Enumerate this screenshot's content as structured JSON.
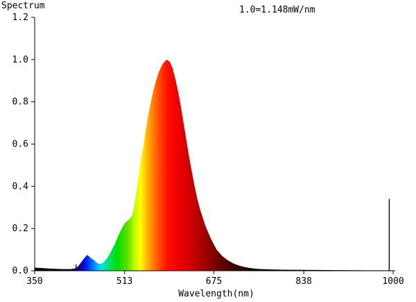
{
  "chart_data": {
    "type": "area",
    "title": "Spectrum",
    "annotation": "1.0=1.148mW/nm",
    "xlabel": "Wavelength(nm)",
    "ylabel": "",
    "xlim": [
      350,
      1000
    ],
    "ylim": [
      0,
      1.2
    ],
    "x_ticks": [
      350,
      513,
      675,
      838,
      1000
    ],
    "y_ticks": [
      0.0,
      0.2,
      0.4,
      0.6,
      0.8,
      1.0,
      1.2
    ],
    "x_tick_labels": [
      "350",
      "513",
      "675",
      "838",
      "1000"
    ],
    "y_tick_labels": [
      "0.0",
      "0.2",
      "0.4",
      "0.6",
      "0.8",
      "1.0",
      "1.2"
    ],
    "fill": "wavelength-color-gradient",
    "series": [
      {
        "x": [
          350,
          380,
          400,
          415,
          425,
          430,
          440,
          445,
          448,
          452,
          458,
          462,
          466,
          470,
          475,
          480,
          485,
          490,
          495,
          500,
          505,
          510,
          515,
          520,
          525,
          528,
          530,
          535,
          540,
          545,
          548,
          550,
          555,
          560,
          565,
          570,
          575,
          580,
          585,
          590,
          595,
          600,
          605,
          610,
          615,
          620,
          625,
          630,
          635,
          640,
          645,
          650,
          660,
          670,
          680,
          690,
          700,
          710,
          720,
          730,
          740,
          750,
          760,
          780,
          800,
          840,
          900,
          950,
          1000
        ],
        "y": [
          0.015,
          0.01,
          0.008,
          0.008,
          0.012,
          0.025,
          0.06,
          0.075,
          0.07,
          0.06,
          0.05,
          0.04,
          0.033,
          0.033,
          0.04,
          0.055,
          0.075,
          0.1,
          0.125,
          0.155,
          0.185,
          0.21,
          0.23,
          0.24,
          0.255,
          0.27,
          0.3,
          0.38,
          0.48,
          0.56,
          0.6,
          0.64,
          0.72,
          0.79,
          0.85,
          0.9,
          0.94,
          0.97,
          0.99,
          1.0,
          0.99,
          0.96,
          0.91,
          0.85,
          0.78,
          0.7,
          0.62,
          0.54,
          0.47,
          0.4,
          0.34,
          0.29,
          0.21,
          0.15,
          0.1,
          0.07,
          0.05,
          0.035,
          0.025,
          0.018,
          0.013,
          0.01,
          0.008,
          0.006,
          0.005,
          0.004,
          0.003,
          0.002,
          0.002
        ]
      }
    ],
    "spikes": [
      {
        "x": 425,
        "y": 0.03
      },
      {
        "x": 993,
        "y": 0.34
      }
    ],
    "grid": false,
    "legend": "none"
  }
}
